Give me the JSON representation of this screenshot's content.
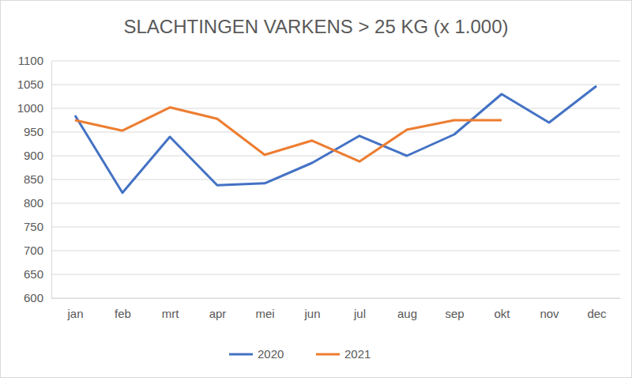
{
  "chart_data": {
    "type": "line",
    "title": "SLACHTINGEN VARKENS > 25 KG (x 1.000)",
    "categories": [
      "jan",
      "feb",
      "mrt",
      "apr",
      "mei",
      "jun",
      "jul",
      "aug",
      "sep",
      "okt",
      "nov",
      "dec"
    ],
    "series": [
      {
        "name": "2020",
        "color": "#4472c4",
        "values": [
          985,
          822,
          940,
          838,
          842,
          885,
          942,
          900,
          945,
          1030,
          970,
          1047
        ]
      },
      {
        "name": "2021",
        "color": "#ed7d31",
        "values": [
          975,
          953,
          1002,
          978,
          902,
          932,
          888,
          955,
          975,
          975,
          null,
          null
        ]
      }
    ],
    "ylim": [
      600,
      1100
    ],
    "yticks": [
      600,
      650,
      700,
      750,
      800,
      850,
      900,
      950,
      1000,
      1050,
      1100
    ],
    "grid": true,
    "legend": "bottom"
  }
}
